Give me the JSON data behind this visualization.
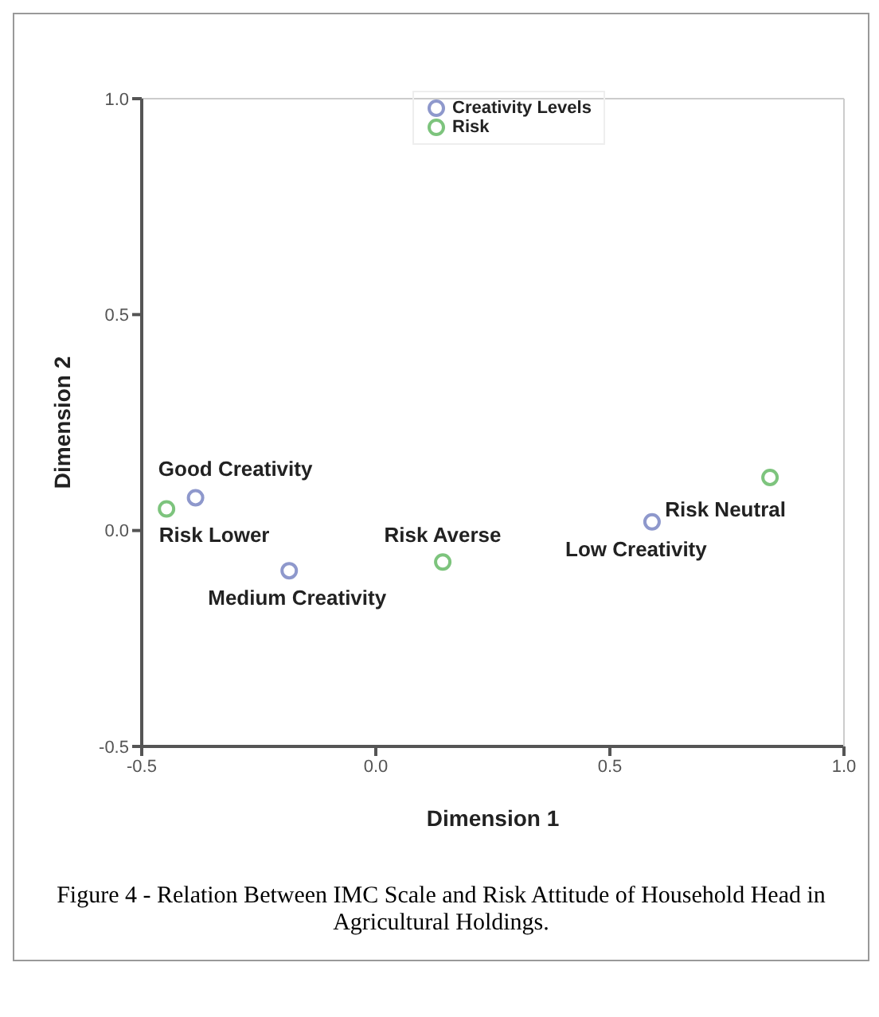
{
  "chart_data": {
    "type": "scatter",
    "xlabel": "Dimension 1",
    "ylabel": "Dimension 2",
    "xlim": [
      -0.5,
      1.0
    ],
    "ylim": [
      -0.5,
      1.0
    ],
    "xticks": [
      {
        "value": -0.5,
        "label": "-0.5"
      },
      {
        "value": 0,
        "label": "0.0"
      },
      {
        "value": 0.5,
        "label": "0.5"
      },
      {
        "value": 1.0,
        "label": "1.0"
      }
    ],
    "yticks": [
      {
        "value": -0.5,
        "label": "-0.5"
      },
      {
        "value": 0,
        "label": "0.0"
      },
      {
        "value": 0.5,
        "label": "0.5"
      },
      {
        "value": 1.0,
        "label": "1.0"
      }
    ],
    "grid": false,
    "legend": "top",
    "marker": "circle",
    "series": [
      {
        "name": "Creativity Levels",
        "color": "#8e98cc",
        "x": [
          -0.385,
          -0.185,
          0.59
        ],
        "values": [
          0.076,
          -0.093,
          0.02
        ]
      },
      {
        "name": "Risk",
        "color": "#7dc47d",
        "x": [
          -0.447,
          0.143,
          0.842
        ],
        "values": [
          0.05,
          -0.073,
          0.123
        ]
      }
    ],
    "annotations": [
      {
        "text": "Good Creativity",
        "x": -0.385,
        "y": 0.076
      },
      {
        "text": "Risk Lower",
        "x": -0.447,
        "y": 0.05
      },
      {
        "text": "Medium Creativity",
        "x": -0.185,
        "y": -0.093
      },
      {
        "text": "Risk Averse",
        "x": 0.143,
        "y": -0.073
      },
      {
        "text": "Low Creativity",
        "x": 0.59,
        "y": 0.02
      },
      {
        "text": "Risk Neutral",
        "x": 0.842,
        "y": 0.123
      },
      "Figure 4 - Relation Between IMC Scale and Risk Attitude of Household Head in Agricultural Holdings."
    ]
  }
}
